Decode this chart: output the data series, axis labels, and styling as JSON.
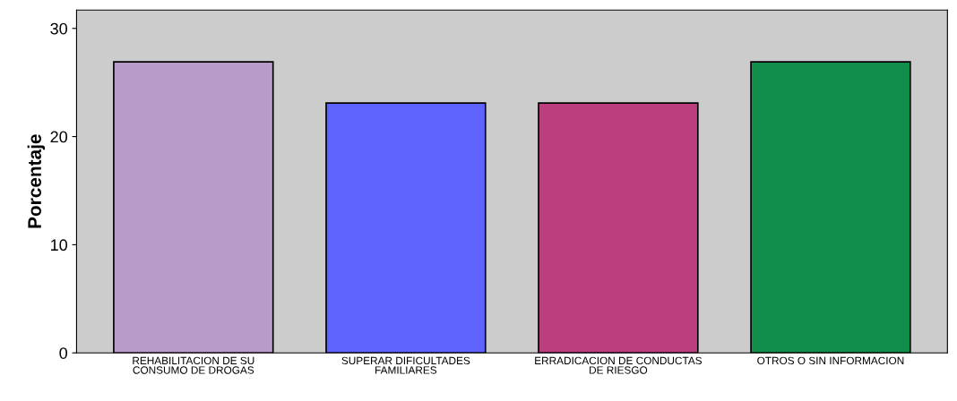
{
  "chart_data": {
    "type": "bar",
    "ylabel": "Porcentaje",
    "categories": [
      "REHABILITACION DE SU\nCONSUMO DE DROGAS",
      "SUPERAR DIFICULTADES\nFAMILIARES",
      "ERRADICACION DE CONDUCTAS\nDE RIESGO",
      "OTROS O SIN INFORMACION"
    ],
    "values": [
      26.9,
      23.1,
      23.1,
      26.9
    ],
    "colors": [
      "#b89bc9",
      "#5f63fe",
      "#bb3f7e",
      "#118e4b"
    ],
    "ylim": [
      0,
      31.7
    ],
    "yticks": [
      0,
      10,
      20,
      30
    ],
    "grid": false
  }
}
